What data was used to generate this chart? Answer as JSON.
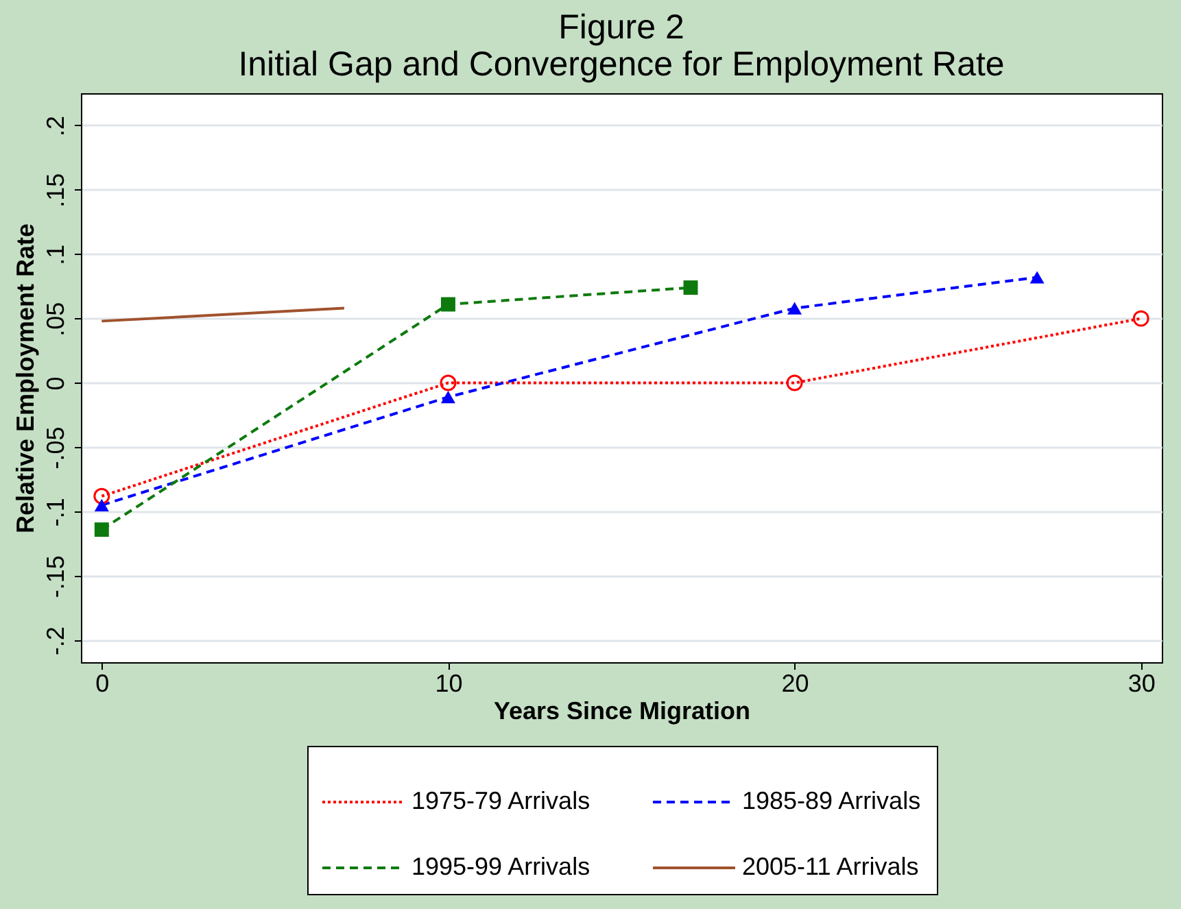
{
  "chart_data": {
    "type": "line",
    "title": "Figure 2",
    "subtitle": "Initial Gap and Convergence for Employment Rate",
    "xlabel": "Years Since Migration",
    "ylabel": "Relative Employment Rate",
    "xlim": [
      -0.6,
      30.6
    ],
    "xticks": [
      0,
      10,
      20,
      30
    ],
    "ylim": [
      -0.217,
      0.225
    ],
    "yticks": [
      {
        "value": -0.2,
        "label": "-.2"
      },
      {
        "value": -0.15,
        "label": "-.15"
      },
      {
        "value": -0.1,
        "label": "-.1"
      },
      {
        "value": -0.05,
        "label": "-.05"
      },
      {
        "value": 0,
        "label": "0"
      },
      {
        "value": 0.05,
        "label": ".05"
      },
      {
        "value": 0.1,
        "label": ".1"
      },
      {
        "value": 0.15,
        "label": ".15"
      },
      {
        "value": 0.2,
        "label": ".2"
      }
    ],
    "grid": "y",
    "legend": "bottom",
    "series": [
      {
        "name": "1975-79 Arrivals",
        "color": "#ff0000",
        "x": [
          0,
          10,
          20,
          30
        ],
        "values": [
          -0.088,
          0,
          0,
          0.05
        ],
        "marker": "circle",
        "line_style": "dotted"
      },
      {
        "name": "1985-89 Arrivals",
        "color": "#0000ff",
        "x": [
          0,
          10,
          20,
          27
        ],
        "values": [
          -0.095,
          -0.011,
          0.058,
          0.082
        ],
        "marker": "triangle",
        "line_style": "dashed"
      },
      {
        "name": "1995-99 Arrivals",
        "color": "#0d7a0d",
        "x": [
          0,
          10,
          17
        ],
        "values": [
          -0.114,
          0.061,
          0.074
        ],
        "marker": "square",
        "line_style": "dashed"
      },
      {
        "name": "2005-11 Arrivals",
        "color": "#a0522d",
        "x": [
          0,
          7
        ],
        "values": [
          0.048,
          0.058
        ],
        "marker": "none",
        "line_style": "solid"
      }
    ]
  }
}
